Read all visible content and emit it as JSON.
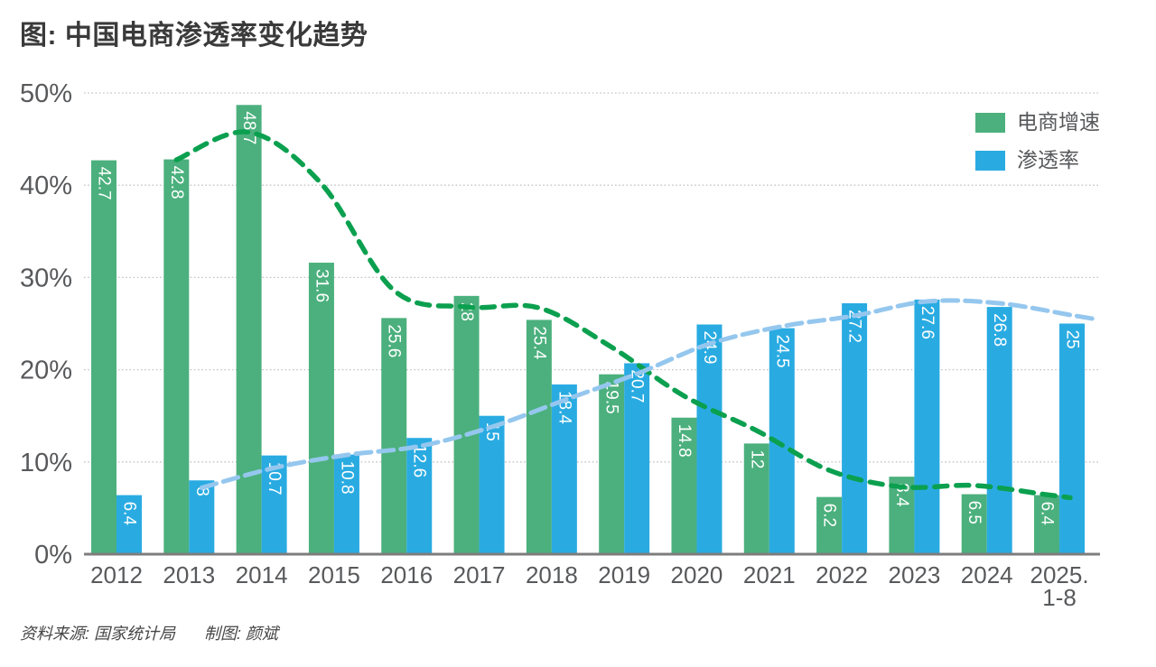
{
  "page": {
    "title": "图: 中国电商渗透率变化趋势",
    "source_label": "资料来源: 国家统计局",
    "credit_label": "制图: 颜斌"
  },
  "legend": {
    "items": [
      {
        "label": "电商增速",
        "color": "#4bb07d"
      },
      {
        "label": "渗透率",
        "color": "#29abe2"
      }
    ]
  },
  "chart_data": {
    "type": "bar",
    "title": "图: 中国电商渗透率变化趋势",
    "categories": [
      "2012",
      "2013",
      "2014",
      "2015",
      "2016",
      "2017",
      "2018",
      "2019",
      "2020",
      "2021",
      "2022",
      "2023",
      "2024",
      "2025.\n1-8"
    ],
    "series": [
      {
        "name": "电商增速",
        "type": "bar",
        "color": "#4bb07d",
        "label_color": "#ffffff",
        "values": [
          42.7,
          42.8,
          48.7,
          31.6,
          25.6,
          28,
          25.4,
          19.5,
          14.8,
          12,
          6.2,
          8.4,
          6.5,
          6.4
        ]
      },
      {
        "name": "渗透率",
        "type": "bar",
        "color": "#29abe2",
        "label_color": "#ffffff",
        "values": [
          6.4,
          8,
          10.7,
          10.8,
          12.6,
          15,
          18.4,
          20.7,
          24.9,
          24.5,
          27.2,
          27.6,
          26.8,
          25
        ]
      }
    ],
    "trendlines": [
      {
        "name": "电商增速移动平均趋势线",
        "color": "#0ba04f",
        "style": "dashed",
        "start_index": 1,
        "values": [
          42.75,
          45.75,
          40.15,
          28.6,
          26.8,
          26.7,
          22.45,
          17.15,
          13.4,
          9.1,
          7.3,
          7.45,
          6.45
        ]
      },
      {
        "name": "渗透率移动平均趋势线",
        "color": "#95c7ee",
        "style": "dashed",
        "start_index": 1,
        "values": [
          7.2,
          9.35,
          10.75,
          11.7,
          13.8,
          16.7,
          19.55,
          22.8,
          24.7,
          25.85,
          27.4,
          27.2,
          25.9
        ]
      }
    ],
    "y_axis": {
      "tick_labels": [
        "0%",
        "10%",
        "20%",
        "30%",
        "40%",
        "50%"
      ],
      "min": 0,
      "max": 50,
      "tick_step": 10
    },
    "x_axis": {
      "label_color": "#58595b"
    },
    "grid": "dotted-horizontal",
    "legend_position": "top-right",
    "bar_labels": "white, rotated 90deg, inside bar top"
  }
}
